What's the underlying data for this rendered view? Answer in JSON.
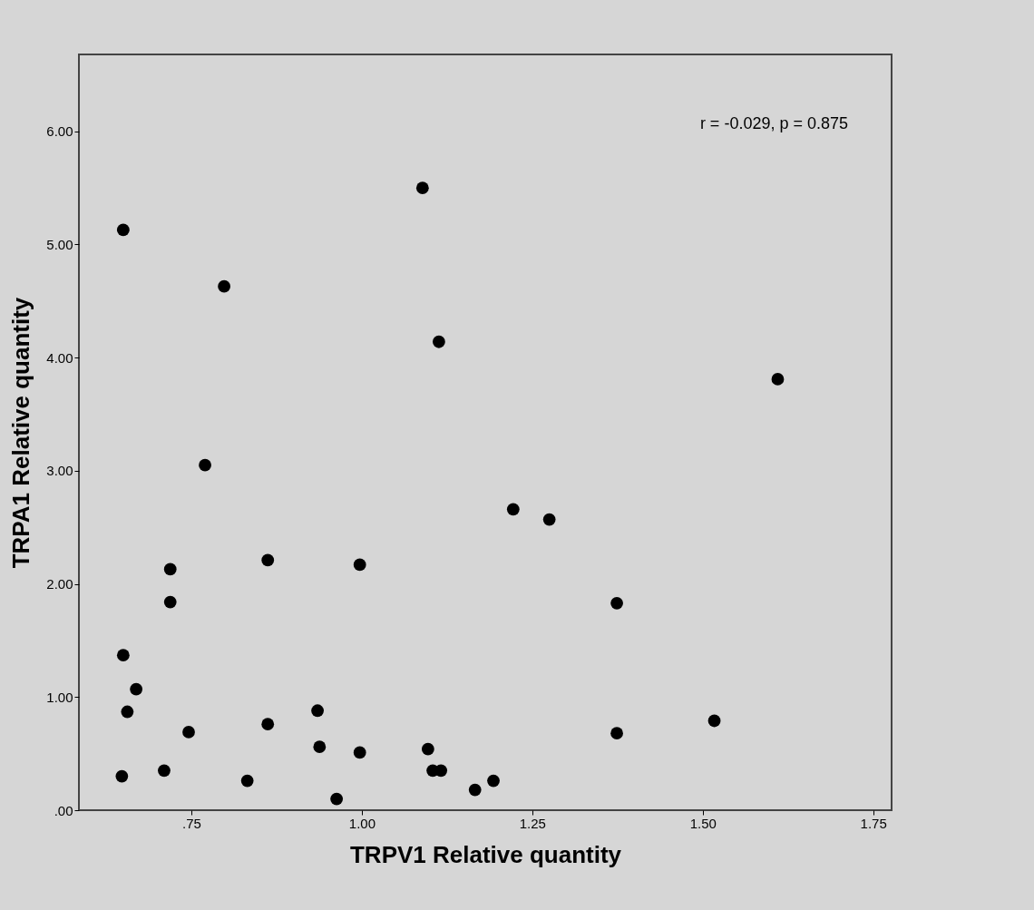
{
  "chart_data": {
    "type": "scatter",
    "xlabel": "TRPV1 Relative quantity",
    "ylabel": "TRPA1 Relative quantity",
    "annotations": [
      "r = -0.029, p = 0.875"
    ],
    "marker": "circle",
    "grid": false,
    "xlim": [
      0.585,
      1.777
    ],
    "ylim": [
      0,
      6.68
    ],
    "xticks": [
      {
        "value": 0.75,
        "label": ".75"
      },
      {
        "value": 1,
        "label": "1.00"
      },
      {
        "value": 1.25,
        "label": "1.25"
      },
      {
        "value": 1.5,
        "label": "1.50"
      },
      {
        "value": 1.75,
        "label": "1.75"
      }
    ],
    "yticks": [
      {
        "value": 0,
        "label": ".00"
      },
      {
        "value": 1,
        "label": "1.00"
      },
      {
        "value": 2,
        "label": "2.00"
      },
      {
        "value": 3,
        "label": "3.00"
      },
      {
        "value": 4,
        "label": "4.00"
      },
      {
        "value": 5,
        "label": "5.00"
      },
      {
        "value": 6,
        "label": "6.00"
      }
    ],
    "series": [
      {
        "color": "#000000",
        "x": [
          0.65,
          1.089,
          0.798,
          1.113,
          1.61,
          0.77,
          1.222,
          1.275,
          0.862,
          0.997,
          0.719,
          0.719,
          1.374,
          0.65,
          0.669,
          0.656,
          0.935,
          0.746,
          0.862,
          1.374,
          1.517,
          0.938,
          0.997,
          1.097,
          1.104,
          1.116,
          0.71,
          0.648,
          0.832,
          1.193,
          1.166,
          0.963
        ],
        "values": [
          5.13,
          5.5,
          4.63,
          4.14,
          3.81,
          3.05,
          2.66,
          2.57,
          2.21,
          2.17,
          2.13,
          1.84,
          1.83,
          1.37,
          1.07,
          0.87,
          0.88,
          0.69,
          0.76,
          0.68,
          0.79,
          0.56,
          0.51,
          0.54,
          0.35,
          0.35,
          0.35,
          0.3,
          0.26,
          0.26,
          0.18,
          0.1
        ]
      }
    ]
  }
}
